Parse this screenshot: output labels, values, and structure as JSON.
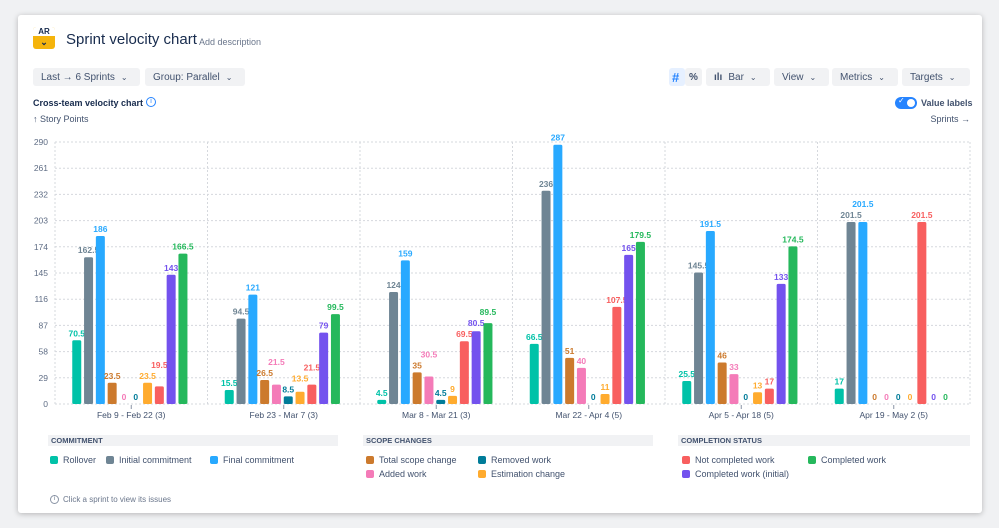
{
  "header": {
    "logo": "AR",
    "title": "Sprint velocity chart",
    "add_description": "Add description"
  },
  "toolbar": {
    "range": "Last → 6 Sprints",
    "group": "Group: Parallel",
    "count_mode": "#",
    "percent_mode": "%",
    "chart_type": "Bar",
    "view": "View",
    "metrics": "Metrics",
    "targets": "Targets",
    "value_labels": "Value labels",
    "value_labels_on": true
  },
  "colors": {
    "rollover": "#00c2a8",
    "initial": "#6f8594",
    "final": "#28a9ff",
    "total_scope": "#cc7a2d",
    "added": "#f47bb8",
    "removed": "#007c99",
    "estimation": "#ffab2e",
    "not_completed": "#f85f5f",
    "completed_initial": "#7352ee",
    "completed": "#25b85c",
    "accent": "#2684ff"
  },
  "chart_data": {
    "type": "bar",
    "title": "Cross-team velocity chart",
    "ylabel": "↑ Story Points",
    "xlabel": "Sprints →",
    "ylim": [
      0,
      290
    ],
    "yticks": [
      0,
      29,
      58,
      87,
      116,
      145,
      174,
      203,
      232,
      261,
      290
    ],
    "grid": true,
    "legend_position": "bottom",
    "categories": [
      "Feb 9 - Feb 22 (3)",
      "Feb 23 - Mar 7 (3)",
      "Mar 8 - Mar 21 (3)",
      "Mar 22 - Apr 4 (5)",
      "Apr 5 - Apr 18 (5)",
      "Apr 19 - May 2 (5)"
    ],
    "series": [
      {
        "name": "Rollover",
        "key": "rollover",
        "values": [
          70.5,
          15.5,
          4.5,
          66.5,
          25.5,
          17
        ]
      },
      {
        "name": "Initial commitment",
        "key": "initial",
        "values": [
          162.5,
          94.5,
          124,
          236,
          145.5,
          201.5
        ]
      },
      {
        "name": "Final commitment",
        "key": "final",
        "values": [
          186,
          121,
          159,
          287,
          191.5,
          201.5
        ]
      },
      {
        "name": "Total scope change",
        "key": "total_scope",
        "values": [
          23.5,
          26.5,
          35,
          51,
          46,
          0
        ]
      },
      {
        "name": "Added work",
        "key": "added",
        "values": [
          0,
          21.5,
          30.5,
          40,
          33,
          0
        ]
      },
      {
        "name": "Removed work",
        "key": "removed",
        "values": [
          0,
          8.5,
          4.5,
          0,
          0,
          0
        ]
      },
      {
        "name": "Estimation change",
        "key": "estimation",
        "values": [
          23.5,
          13.5,
          9,
          11,
          13,
          0
        ]
      },
      {
        "name": "Not completed work",
        "key": "not_completed",
        "values": [
          19.5,
          21.5,
          69.5,
          107.5,
          17,
          201.5
        ]
      },
      {
        "name": "Completed work (initial)",
        "key": "completed_initial",
        "values": [
          143,
          79,
          80.5,
          165,
          133,
          0
        ]
      },
      {
        "name": "Completed work",
        "key": "completed",
        "values": [
          166.5,
          99.5,
          89.5,
          179.5,
          174.5,
          0
        ]
      }
    ]
  },
  "legend": {
    "commitment": {
      "title": "COMMITMENT",
      "items": [
        "Rollover",
        "Initial commitment",
        "Final commitment"
      ]
    },
    "scope": {
      "title": "SCOPE CHANGES",
      "items": [
        "Total scope change",
        "Removed work",
        "Added work",
        "Estimation change"
      ]
    },
    "completion": {
      "title": "COMPLETION STATUS",
      "items": [
        "Not completed work",
        "Completed work",
        "Completed work (initial)"
      ]
    }
  },
  "hint": "Click a sprint to view its issues"
}
